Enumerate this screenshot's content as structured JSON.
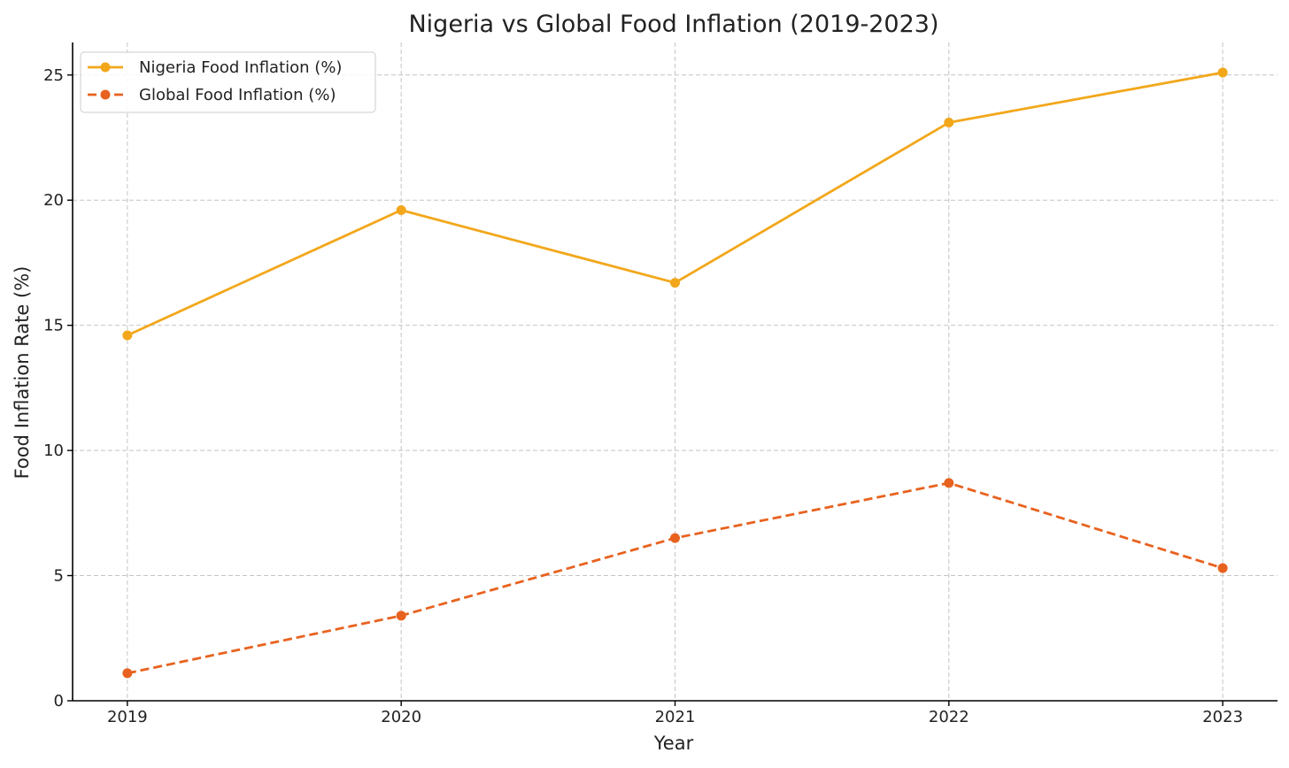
{
  "chart_data": {
    "type": "line",
    "title": "Nigeria vs Global Food Inflation (2019-2023)",
    "xlabel": "Year",
    "ylabel": "Food Inflation Rate (%)",
    "x": [
      "2019",
      "2020",
      "2021",
      "2022",
      "2023"
    ],
    "xlim": [
      2018.8,
      2023.2
    ],
    "ylim": [
      0,
      26.3
    ],
    "yticks": [
      "0",
      "5",
      "10",
      "15",
      "20",
      "25"
    ],
    "grid": true,
    "legend_position": "top-left",
    "series": [
      {
        "name": "Nigeria Food Inflation (%)",
        "values": [
          14.6,
          19.6,
          16.7,
          23.1,
          25.1
        ],
        "color": "#f2a71b",
        "line_style": "solid",
        "marker": "circle"
      },
      {
        "name": "Global Food Inflation (%)",
        "values": [
          1.1,
          3.4,
          6.5,
          8.7,
          5.3
        ],
        "color": "#e8621f",
        "line_style": "dashed",
        "marker": "circle"
      }
    ]
  }
}
